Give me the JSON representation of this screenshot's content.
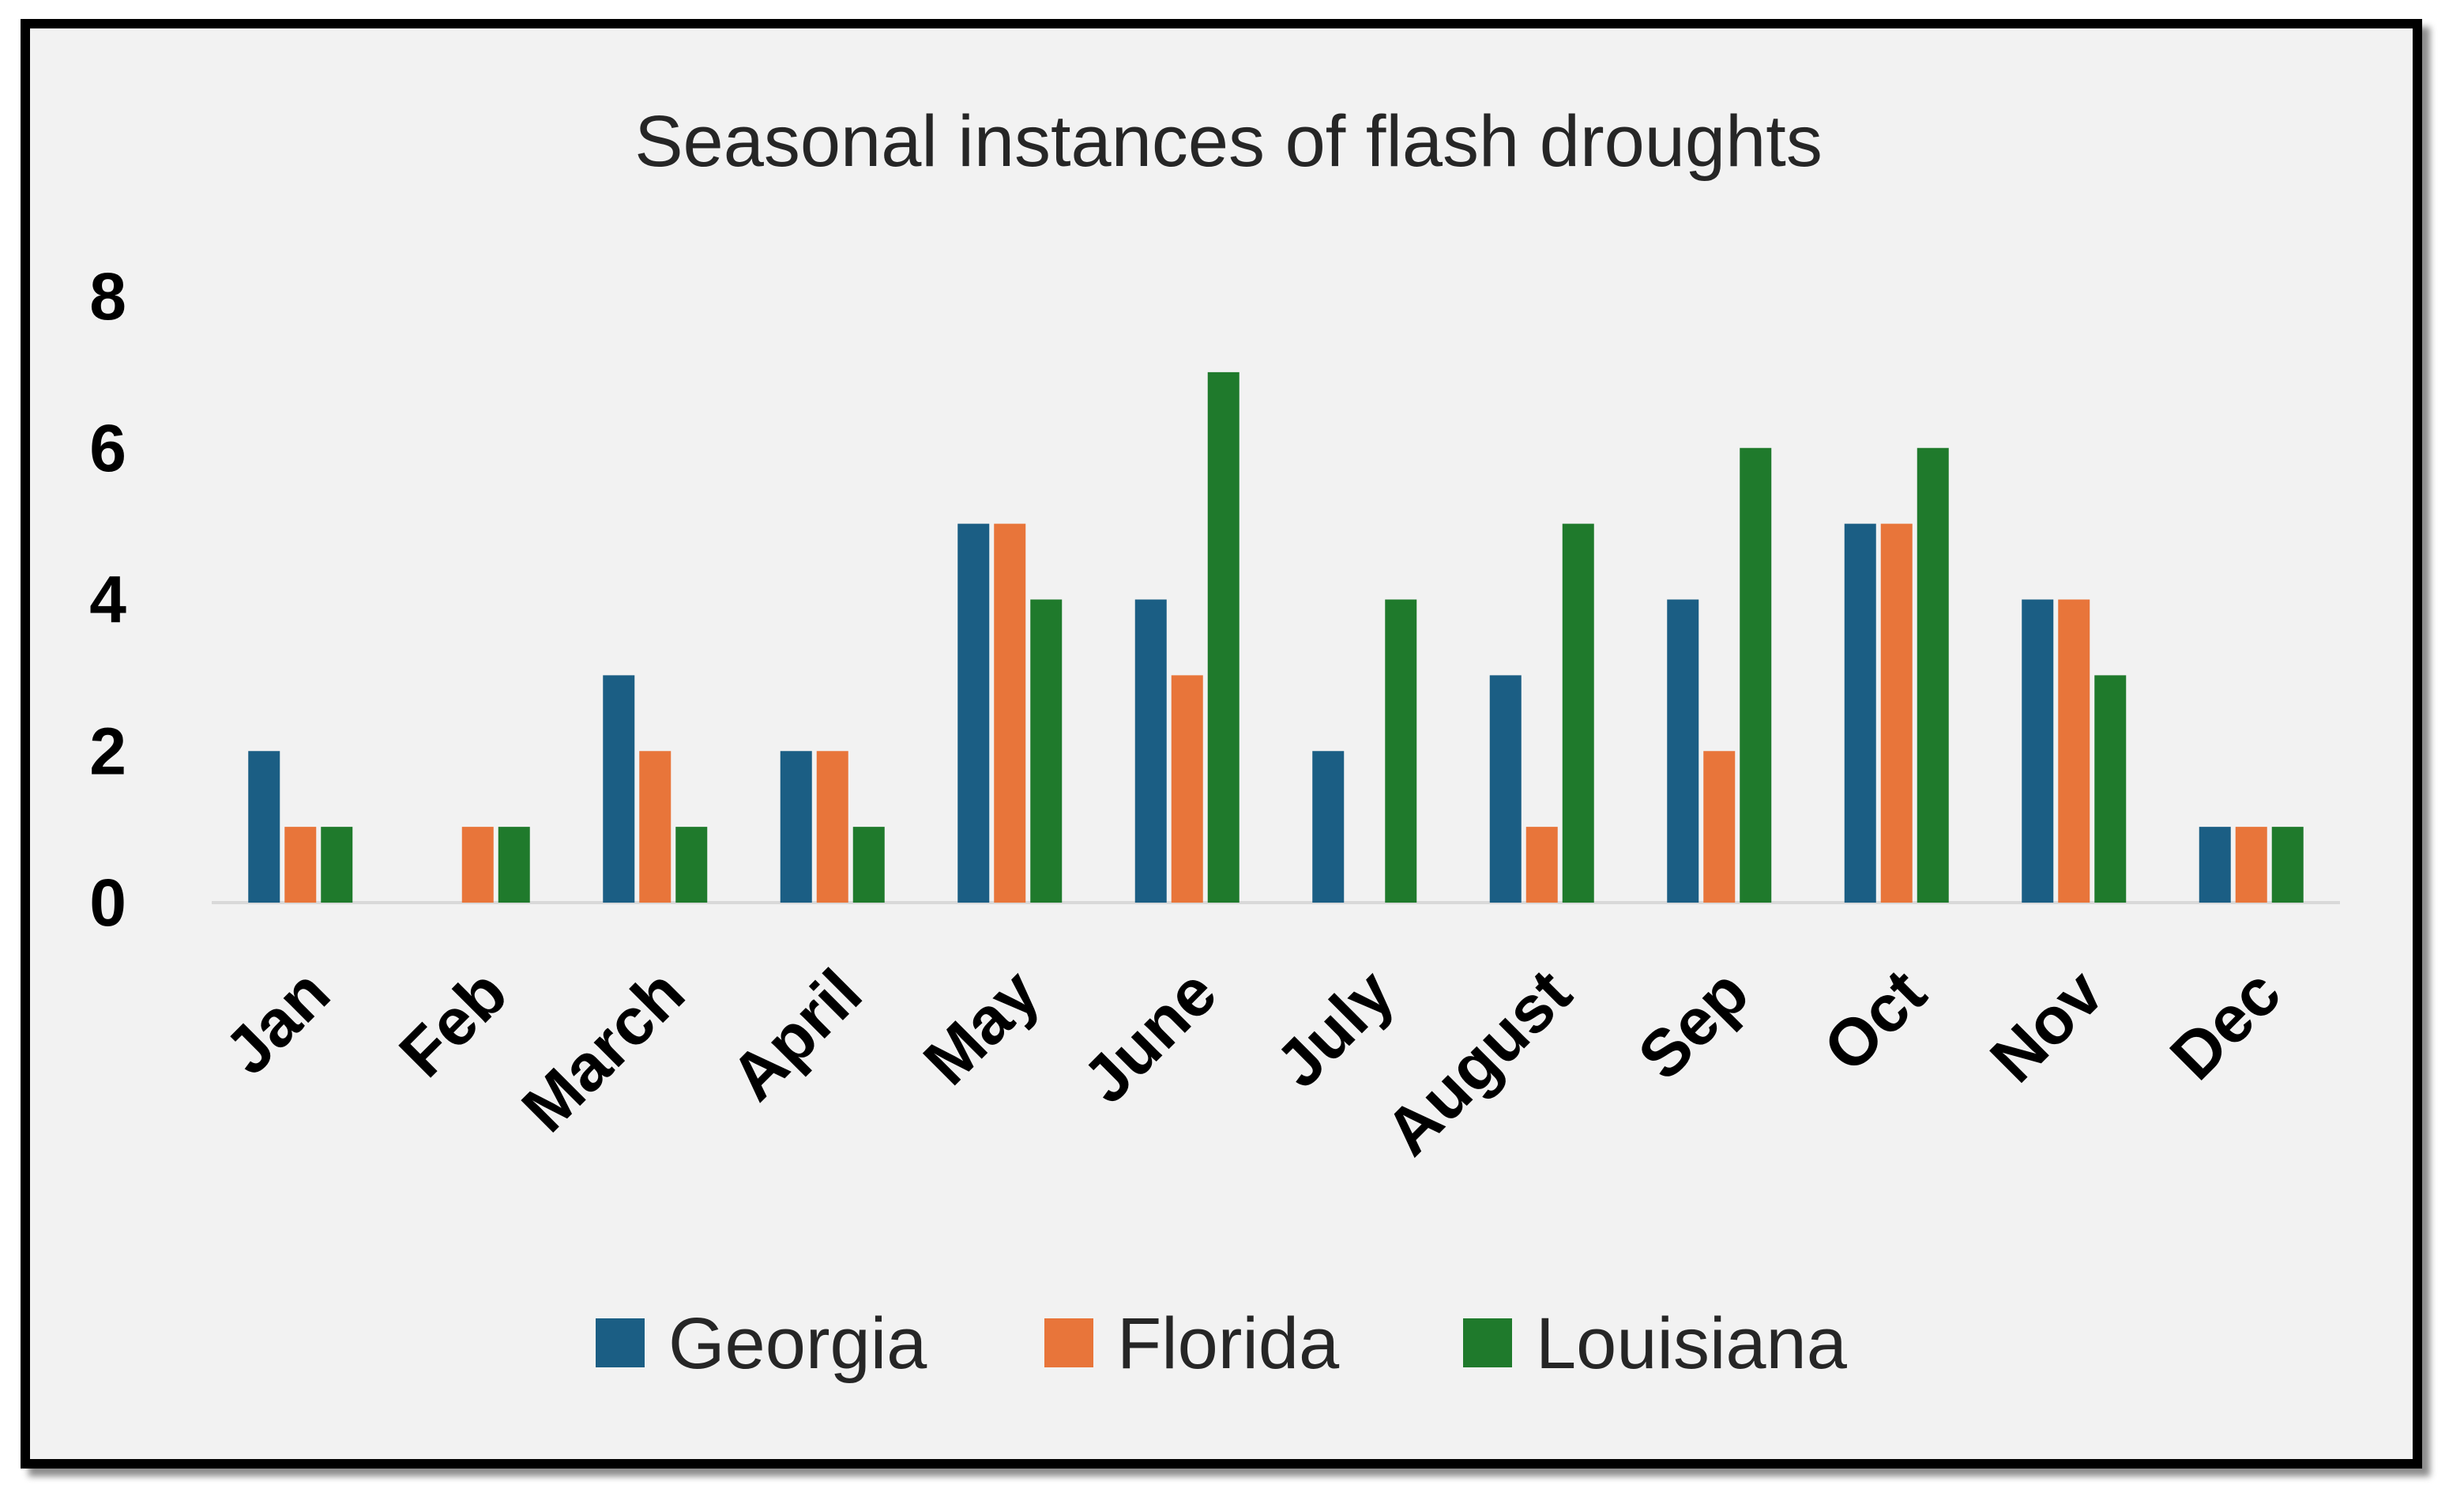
{
  "chart_data": {
    "type": "bar",
    "title": "Seasonal instances of flash droughts",
    "xlabel": "",
    "ylabel": "",
    "ylim": [
      0,
      8
    ],
    "yticks": [
      "0",
      "2",
      "4",
      "6",
      "8"
    ],
    "grid": false,
    "legend_position": "bottom",
    "categories": [
      "Jan",
      "Feb",
      "March",
      "April",
      "May",
      "June",
      "July",
      "August",
      "Sep",
      "Oct",
      "Nov",
      "Dec"
    ],
    "series": [
      {
        "name": "Georgia",
        "color": "#1b5e84",
        "values": [
          2,
          0,
          3,
          2,
          5,
          4,
          2,
          3,
          4,
          5,
          4,
          1
        ]
      },
      {
        "name": "Florida",
        "color": "#e8753a",
        "values": [
          1,
          1,
          2,
          2,
          5,
          3,
          0,
          1,
          2,
          5,
          4,
          1
        ]
      },
      {
        "name": "Louisiana",
        "color": "#1f7a2c",
        "values": [
          1,
          1,
          1,
          1,
          4,
          7,
          4,
          5,
          6,
          6,
          3,
          1
        ]
      }
    ]
  }
}
